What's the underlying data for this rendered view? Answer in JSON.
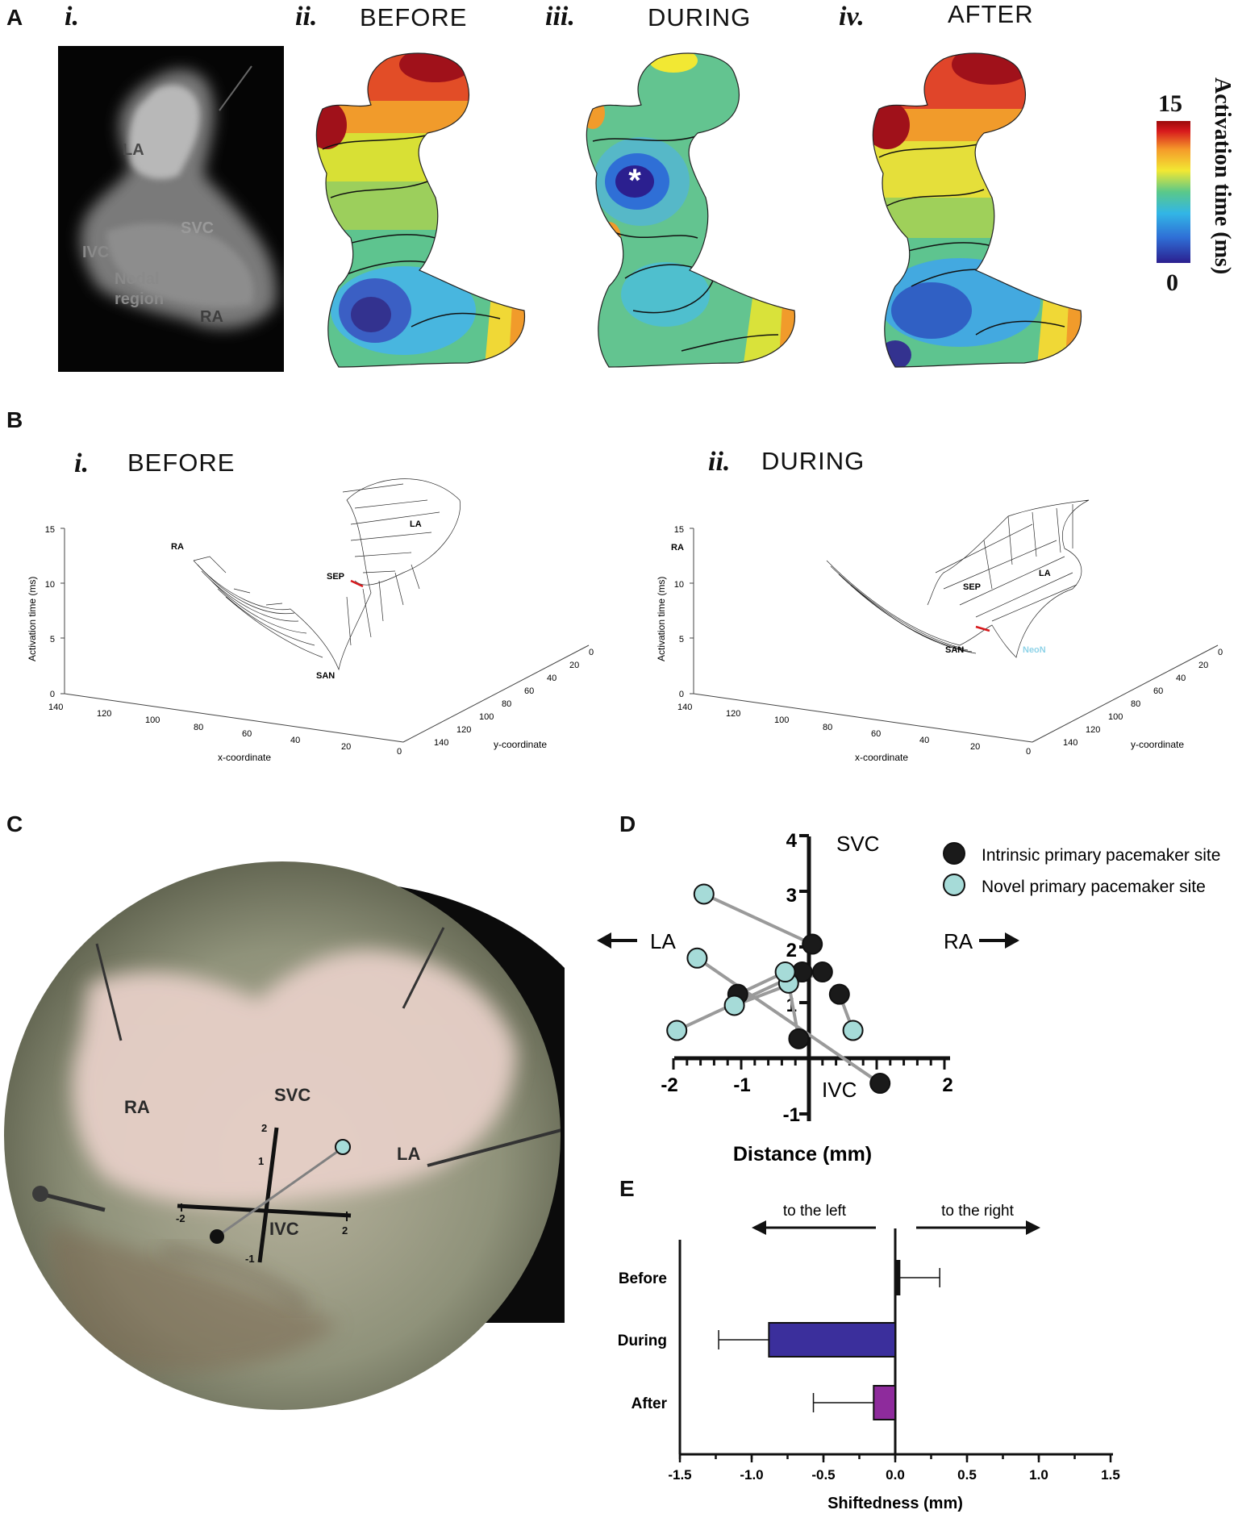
{
  "panel_letters": {
    "a": "A",
    "b": "B",
    "c": "C",
    "d": "D",
    "e": "E"
  },
  "panel_a": {
    "roman": [
      "i.",
      "ii.",
      "iii.",
      "iv."
    ],
    "conditions": [
      "BEFORE",
      "DURING",
      "AFTER"
    ],
    "photo_labels": {
      "la": "LA",
      "svc": "SVC",
      "ivc": "IVC",
      "nodal": "Nodal",
      "region": "region",
      "ra": "RA"
    },
    "star": "*",
    "colorbar": {
      "max": "15",
      "min": "0",
      "title": "Activation time (ms)",
      "colors": [
        "#2b1f8f",
        "#2f6fd6",
        "#32b6e6",
        "#5ac88a",
        "#f2e833",
        "#f59a2a",
        "#d7191c",
        "#9b0a0a"
      ]
    },
    "map_colors": {
      "low": "#2b2a9a",
      "mid_low": "#36a7e3",
      "mid": "#63c490",
      "mid_high": "#f0d836",
      "high": "#e8502a",
      "max": "#a0111a"
    }
  },
  "panel_b": {
    "roman": [
      "i.",
      "ii."
    ],
    "conditions": [
      "BEFORE",
      "DURING"
    ],
    "z_label": "Activation time (ms)",
    "x_label": "x-coordinate",
    "y_label": "y-coordinate",
    "z_ticks": [
      "15",
      "10",
      "5",
      "0"
    ],
    "x_ticks": [
      "140",
      "120",
      "100",
      "80",
      "60",
      "40",
      "20",
      "0"
    ],
    "y_ticks": [
      "0",
      "20",
      "40",
      "60",
      "80",
      "100",
      "120",
      "140"
    ],
    "region_labels_before": {
      "ra": "RA",
      "la": "LA",
      "sep": "SEP",
      "san": "SAN"
    },
    "region_labels_during": {
      "ra": "RA",
      "la": "LA",
      "sep": "SEP",
      "san": "SAN",
      "neon": "NeoN"
    }
  },
  "panel_c": {
    "labels": {
      "ra": "RA",
      "svc": "SVC",
      "la": "LA",
      "ivc": "IVC"
    },
    "axis_ticks": {
      "x_left": "-2",
      "x_right": "2",
      "y_top": "2",
      "y_mid": "1",
      "y_bottom": "-1"
    }
  },
  "panel_d": {
    "legend": [
      {
        "name": "Intrinsic primary pacemaker site",
        "color": "#1a1a1a"
      },
      {
        "name": "Novel primary pacemaker site",
        "color": "#a6dbd8"
      }
    ],
    "labels": {
      "svc": "SVC",
      "ivc": "IVC",
      "la": "LA",
      "ra": "RA"
    },
    "xlabel": "Distance (mm)",
    "x_ticks": [
      "-2",
      "-1",
      "2"
    ],
    "y_ticks": [
      "4",
      "3",
      "2",
      "1",
      "-1"
    ]
  },
  "panel_e": {
    "left_text": "to the left",
    "right_text": "to the right",
    "xlabel": "Shiftedness (mm)",
    "x_ticks": [
      "-1.5",
      "-1.0",
      "-0.5",
      "0.0",
      "0.5",
      "1.0",
      "1.5"
    ]
  },
  "chart_data": [
    {
      "type": "scatter",
      "panel": "D",
      "xlabel": "Distance (mm)",
      "xlim": [
        -2,
        2
      ],
      "ylim": [
        -1,
        4
      ],
      "series": [
        {
          "name": "Intrinsic primary pacemaker site",
          "points": [
            [
              0.05,
              2.05
            ],
            [
              0.2,
              1.55
            ],
            [
              -0.1,
              1.55
            ],
            [
              -1.05,
              1.15
            ],
            [
              0.45,
              1.15
            ],
            [
              -0.15,
              0.35
            ],
            [
              1.05,
              -0.45
            ]
          ]
        },
        {
          "name": "Novel primary pacemaker site",
          "points": [
            [
              -1.55,
              2.95
            ],
            [
              -1.65,
              1.8
            ],
            [
              -0.3,
              1.35
            ],
            [
              -1.1,
              0.95
            ],
            [
              0.65,
              0.5
            ],
            [
              -1.95,
              0.5
            ],
            [
              -0.35,
              1.55
            ]
          ]
        }
      ],
      "pairs": [
        [
          [
            -1.55,
            2.95
          ],
          [
            0.05,
            2.05
          ]
        ],
        [
          [
            -1.65,
            1.8
          ],
          [
            1.05,
            -0.45
          ]
        ],
        [
          [
            -1.95,
            0.5
          ],
          [
            -0.1,
            1.55
          ]
        ],
        [
          [
            -1.1,
            0.95
          ],
          [
            0.2,
            1.55
          ]
        ],
        [
          [
            -0.3,
            1.35
          ],
          [
            -0.15,
            0.35
          ]
        ],
        [
          [
            0.65,
            0.5
          ],
          [
            0.45,
            1.15
          ]
        ],
        [
          [
            -0.35,
            1.55
          ],
          [
            -1.05,
            1.15
          ]
        ]
      ]
    },
    {
      "type": "bar",
      "panel": "E",
      "orientation": "horizontal",
      "categories": [
        "Before",
        "During",
        "After"
      ],
      "values": [
        0.03,
        -0.88,
        -0.15
      ],
      "errors": [
        0.28,
        0.35,
        0.42
      ],
      "colors": [
        "#111111",
        "#3b2f9c",
        "#8e2b9c"
      ],
      "xlabel": "Shiftedness (mm)",
      "xlim": [
        -1.5,
        1.5
      ]
    }
  ]
}
